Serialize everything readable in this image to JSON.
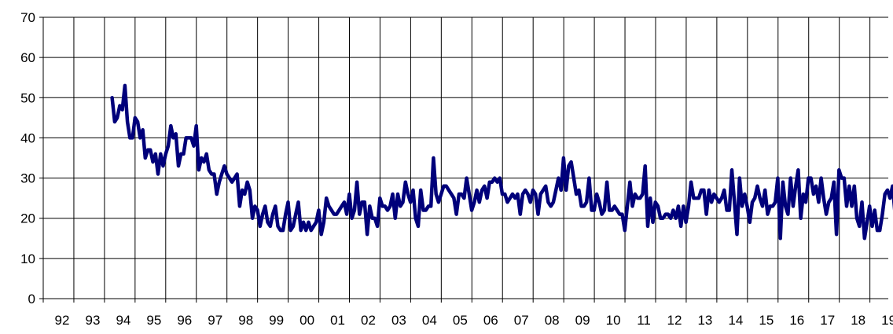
{
  "chart_data": {
    "type": "line",
    "title": "",
    "xlabel": "",
    "ylabel": "",
    "ylim": [
      0,
      70
    ],
    "yticks": [
      0,
      10,
      20,
      30,
      40,
      50,
      60,
      70
    ],
    "xlim": [
      1992,
      2019.6
    ],
    "x_tick_labels": [
      "92",
      "93",
      "94",
      "95",
      "96",
      "97",
      "98",
      "99",
      "00",
      "01",
      "02",
      "03",
      "04",
      "05",
      "06",
      "07",
      "08",
      "09",
      "10",
      "11",
      "12",
      "13",
      "14",
      "15",
      "16",
      "17",
      "18",
      "19"
    ],
    "grid": true,
    "legend": "none",
    "line_color": "#00007a",
    "series": [
      {
        "start": 1994.25,
        "step": 0.0833,
        "values": [
          50,
          44,
          45,
          48,
          47,
          53,
          44,
          40,
          40,
          45,
          44,
          40,
          42,
          35,
          37,
          37,
          34,
          36,
          31,
          36,
          33,
          36,
          38,
          43,
          40,
          41,
          33,
          36,
          36,
          40,
          40,
          40,
          38,
          43,
          32,
          35,
          34,
          36,
          32,
          31,
          31,
          26,
          29,
          31,
          33,
          31,
          30,
          29,
          30,
          31,
          23,
          27,
          26,
          29,
          27,
          20,
          23,
          22,
          18,
          21,
          23,
          19,
          18,
          21,
          23,
          18,
          17,
          17,
          21,
          24,
          17,
          18,
          21,
          24,
          17,
          19,
          17,
          19,
          17,
          18,
          19,
          22,
          16,
          19,
          25,
          23,
          22,
          21,
          21,
          22,
          23,
          24,
          21,
          26,
          20,
          22,
          29,
          21,
          24,
          24,
          16,
          23,
          20,
          20,
          18,
          25,
          23,
          23,
          22,
          23,
          26,
          20,
          26,
          23,
          24,
          29,
          26,
          24,
          27,
          20,
          18,
          27,
          22,
          22,
          23,
          23,
          35,
          26,
          24,
          26,
          28,
          28,
          27,
          26,
          25,
          21,
          26,
          26,
          25,
          30,
          26,
          22,
          24,
          27,
          24,
          27,
          28,
          25,
          29,
          29,
          30,
          29,
          30,
          26,
          26,
          24,
          25,
          26,
          25,
          26,
          21,
          26,
          27,
          26,
          24,
          27,
          26,
          21,
          26,
          27,
          28,
          24,
          23,
          24,
          27,
          30,
          27,
          35,
          27,
          33,
          34,
          30,
          26,
          27,
          23,
          23,
          24,
          30,
          22,
          22,
          26,
          24,
          21,
          22,
          29,
          22,
          22,
          23,
          22,
          21,
          21,
          17,
          23,
          29,
          23,
          26,
          25,
          25,
          26,
          33,
          18,
          25,
          19,
          24,
          23,
          20,
          20,
          21,
          21,
          20,
          22,
          20,
          23,
          18,
          23,
          19,
          23,
          29,
          25,
          25,
          25,
          27,
          27,
          21,
          27,
          24,
          26,
          25,
          24,
          25,
          27,
          22,
          22,
          32,
          24,
          16,
          30,
          23,
          26,
          23,
          19,
          24,
          25,
          28,
          25,
          23,
          27,
          21,
          23,
          23,
          24,
          30,
          15,
          29,
          23,
          21,
          30,
          23,
          28,
          32,
          20,
          26,
          24,
          30,
          30,
          26,
          28,
          24,
          30,
          25,
          21,
          24,
          25,
          29,
          16,
          32,
          30,
          30,
          23,
          28,
          23,
          28,
          20,
          18,
          24,
          15,
          19,
          23,
          18,
          22,
          17,
          17,
          21,
          26,
          27,
          25,
          28,
          21,
          22,
          15,
          23,
          24,
          21,
          17
        ]
      }
    ]
  }
}
